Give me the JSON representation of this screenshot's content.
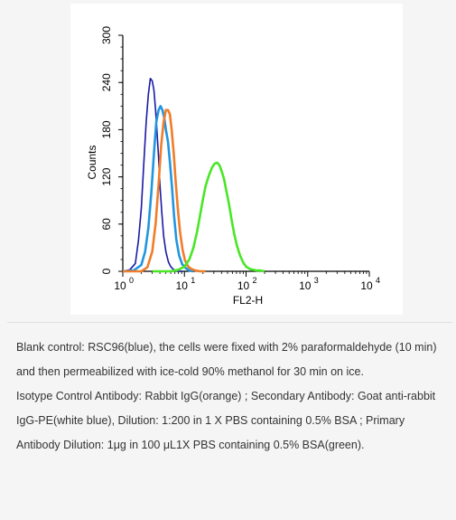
{
  "chart_data": {
    "type": "line",
    "xlabel": "FL2-H",
    "ylabel": "Counts",
    "xscale": "log",
    "xlim": [
      1,
      10000
    ],
    "ylim": [
      0,
      300
    ],
    "x_ticks": [
      {
        "base": "10",
        "exp": "0",
        "value": 1
      },
      {
        "base": "10",
        "exp": "1",
        "value": 10
      },
      {
        "base": "10",
        "exp": "2",
        "value": 100
      },
      {
        "base": "10",
        "exp": "3",
        "value": 1000
      },
      {
        "base": "10",
        "exp": "4",
        "value": 10000
      }
    ],
    "y_ticks": [
      "0",
      "60",
      "120",
      "180",
      "240",
      "300"
    ],
    "grid": false,
    "series": [
      {
        "color": "#1a1aa6",
        "x": [
          1,
          1.3,
          1.6,
          1.8,
          2.0,
          2.2,
          2.4,
          2.6,
          2.8,
          3.0,
          3.2,
          3.4,
          3.6,
          3.8,
          4.0,
          4.3,
          4.6,
          5.0,
          5.5,
          6.0,
          6.5,
          7.0,
          8.0,
          9.5
        ],
        "y": [
          0,
          2,
          10,
          40,
          80,
          140,
          190,
          225,
          245,
          242,
          230,
          205,
          175,
          145,
          110,
          75,
          45,
          25,
          12,
          6,
          3,
          1,
          0,
          0
        ]
      },
      {
        "color": "#2196e0",
        "x": [
          1,
          1.5,
          2.0,
          2.3,
          2.6,
          2.9,
          3.2,
          3.5,
          3.8,
          4.1,
          4.4,
          4.7,
          5.0,
          5.4,
          5.8,
          6.3,
          6.8,
          7.4,
          8.2,
          9.2,
          10.5,
          12,
          14
        ],
        "y": [
          0,
          1,
          8,
          25,
          55,
          100,
          150,
          190,
          205,
          210,
          205,
          195,
          180,
          165,
          140,
          105,
          70,
          40,
          20,
          9,
          4,
          1,
          0
        ]
      },
      {
        "color": "#f07d2a",
        "x": [
          1,
          2.0,
          2.5,
          3.0,
          3.4,
          3.8,
          4.2,
          4.6,
          5.0,
          5.4,
          5.8,
          6.2,
          6.7,
          7.2,
          7.8,
          8.5,
          9.3,
          10.2,
          11.5,
          13,
          15,
          18,
          22
        ],
        "y": [
          0,
          0,
          5,
          25,
          60,
          110,
          160,
          190,
          205,
          205,
          200,
          180,
          150,
          115,
          80,
          50,
          28,
          14,
          6,
          3,
          1,
          0,
          0
        ]
      },
      {
        "color": "#49e625",
        "x": [
          3,
          6,
          8,
          10,
          12,
          14,
          16,
          18,
          20,
          22,
          25,
          28,
          31,
          34,
          37,
          40,
          44,
          48,
          53,
          58,
          64,
          71,
          80,
          90,
          100,
          115,
          130,
          150,
          170,
          200
        ],
        "y": [
          0,
          0,
          2,
          6,
          15,
          30,
          50,
          72,
          92,
          108,
          122,
          132,
          137,
          138,
          135,
          128,
          117,
          102,
          85,
          66,
          48,
          33,
          20,
          11,
          6,
          3,
          2,
          1,
          1,
          0
        ]
      }
    ]
  },
  "caption": {
    "paragraph1": "Blank control: RSC96(blue), the cells were fixed with 2% paraformaldehyde (10 min) and then permeabilized with ice-cold 90% methanol for 30 min on ice.",
    "paragraph2": "Isotype Control Antibody: Rabbit IgG(orange) ; Secondary Antibody: Goat anti-rabbit IgG-PE(white blue), Dilution: 1:200 in 1 X PBS containing 0.5% BSA ; Primary Antibody Dilution: 1μg in 100 μL1X PBS containing 0.5% BSA(green)."
  }
}
